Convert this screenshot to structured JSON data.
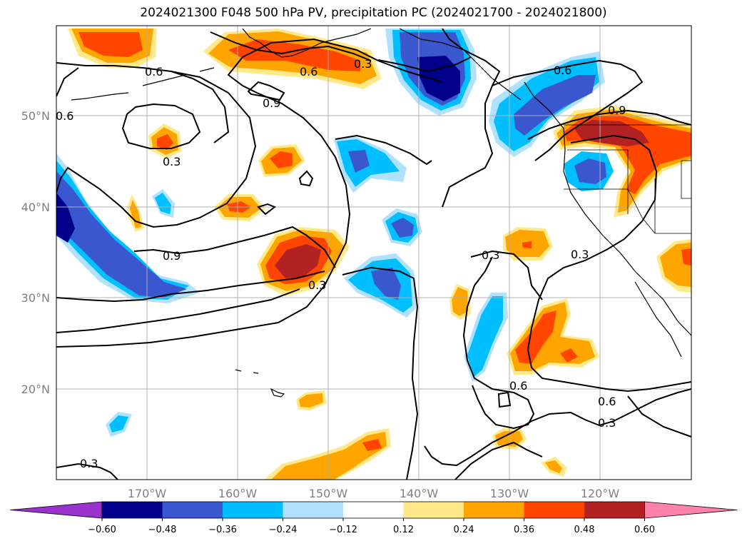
{
  "title": "2024021300 F048 500 hPa PV, precipitation PC (2024021700 - 2024021800)",
  "map": {
    "lon_labels": [
      "170°W",
      "160°W",
      "150°W",
      "140°W",
      "130°W",
      "120°W"
    ],
    "lat_labels": [
      "50°N",
      "40°N",
      "30°N",
      "20°N"
    ],
    "contour_labels": [
      "0.6",
      "0.6",
      "0.3",
      "0.9",
      "0.6",
      "0.3",
      "0.9",
      "0.3",
      "0.3",
      "0.3",
      "0.6",
      "0.9",
      "0.6",
      "0.6",
      "0.3",
      "0.3"
    ]
  },
  "colorbar": {
    "ticks": [
      "−0.60",
      "−0.48",
      "−0.36",
      "−0.24",
      "−0.12",
      "0.12",
      "0.24",
      "0.36",
      "0.48",
      "0.60"
    ],
    "colors": [
      "#9a32cd",
      "#00008b",
      "#3a57cf",
      "#00bfff",
      "#b0e2ff",
      "#ffffff",
      "#ffe98a",
      "#ffa500",
      "#ff4500",
      "#b22222",
      "#ff82ab"
    ]
  },
  "legend_colors": {
    "deep_neg": "#00008b",
    "mid_neg": "#3a57cf",
    "neg": "#00bfff",
    "light_neg": "#b0e2ff",
    "light_pos": "#ffe98a",
    "pos": "#ffa500",
    "mid_pos": "#ff4500",
    "deep_pos": "#b22222"
  }
}
